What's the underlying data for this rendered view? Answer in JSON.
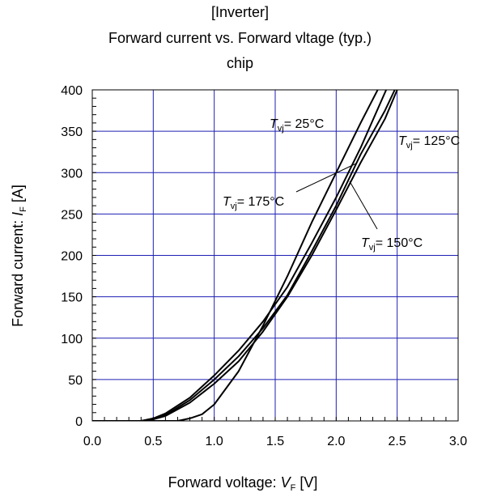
{
  "chart_data": {
    "type": "line",
    "title_lines": [
      "[Inverter]",
      "Forward current vs. Forward vltage (typ.)",
      "chip"
    ],
    "xlabel": {
      "text": "Forward voltage:  ",
      "symbol": "V",
      "subscript": "F",
      "unit": " [V]"
    },
    "ylabel": {
      "text": "Forward current: ",
      "symbol": "I",
      "subscript": "F",
      "unit": " [A]"
    },
    "xlim": [
      0,
      3
    ],
    "ylim": [
      0,
      400
    ],
    "xticks": [
      "0.0",
      "0.5",
      "1.0",
      "1.5",
      "2.0",
      "2.5",
      "3.0"
    ],
    "yticks": [
      "0",
      "50",
      "100",
      "150",
      "200",
      "250",
      "300",
      "350",
      "400"
    ],
    "grid": true,
    "grid_color": "#1f1fb4",
    "line_color": "#000000",
    "series": [
      {
        "name": "Tvj= 25°C",
        "x": [
          0.0,
          0.7,
          0.8,
          0.9,
          1.0,
          1.2,
          1.4,
          1.6,
          1.8,
          2.0,
          2.2,
          2.34
        ],
        "y": [
          0,
          0,
          3,
          8,
          20,
          60,
          115,
          175,
          240,
          300,
          360,
          400
        ]
      },
      {
        "name": "Tvj= 125°C",
        "x": [
          0.0,
          0.4,
          0.5,
          0.6,
          0.8,
          1.0,
          1.2,
          1.4,
          1.6,
          1.8,
          2.0,
          2.2,
          2.4,
          2.5
        ],
        "y": [
          0,
          0,
          2,
          6,
          22,
          45,
          72,
          108,
          150,
          200,
          255,
          312,
          365,
          400
        ]
      },
      {
        "name": "Tvj= 150°C",
        "x": [
          0.0,
          0.4,
          0.5,
          0.6,
          0.8,
          1.0,
          1.2,
          1.4,
          1.6,
          1.8,
          2.0,
          2.2,
          2.4,
          2.48
        ],
        "y": [
          0,
          0,
          2,
          7,
          25,
          50,
          78,
          112,
          152,
          205,
          260,
          322,
          375,
          400
        ]
      },
      {
        "name": "Tvj= 175°C",
        "x": [
          0.0,
          0.4,
          0.5,
          0.6,
          0.8,
          1.0,
          1.2,
          1.4,
          1.6,
          1.8,
          2.0,
          2.2,
          2.41
        ],
        "y": [
          0,
          0,
          3,
          9,
          28,
          55,
          85,
          120,
          162,
          215,
          270,
          330,
          400
        ]
      }
    ],
    "annotations": [
      {
        "symbol": "T",
        "subscript": "vj",
        "text": "= 25°C"
      },
      {
        "symbol": "T",
        "subscript": "vj",
        "text": "= 125°C"
      },
      {
        "symbol": "T",
        "subscript": "vj",
        "text": "= 175°C"
      },
      {
        "symbol": "T",
        "subscript": "vj",
        "text": "= 150°C"
      }
    ]
  }
}
